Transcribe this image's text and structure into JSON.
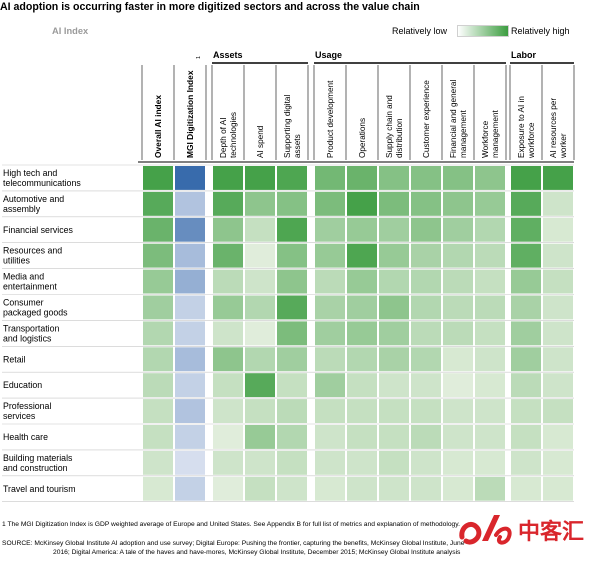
{
  "title": "AI adoption is occurring faster in more digitized sectors and across the value chain",
  "subtitle": "AI Index",
  "legend": {
    "low_label": "Relatively low",
    "high_label": "Relatively high",
    "low_color": "#ffffff",
    "high_color": "#3c9d40"
  },
  "colors": {
    "green_high": "#3c9d40",
    "blue_high": "#2f64a8",
    "grid_line": "#ffffff"
  },
  "chart_data": {
    "type": "heatmap",
    "title": "AI adoption is occurring faster in more digitized sectors and across the value chain",
    "subtitle": "AI Index",
    "scale": "relative, 0 = Relatively low, 1 = Relatively high",
    "groups": [
      {
        "name": "",
        "columns": [
          0,
          1
        ]
      },
      {
        "name": "Assets",
        "columns": [
          2,
          3,
          4
        ]
      },
      {
        "name": "Usage",
        "columns": [
          5,
          6,
          7,
          8,
          9,
          10
        ]
      },
      {
        "name": "Labor",
        "columns": [
          11,
          12
        ]
      }
    ],
    "columns": [
      {
        "lines": [
          "Overall AI index"
        ],
        "bold": true
      },
      {
        "lines": [
          "MGI Digitization Index"
        ],
        "bold": true,
        "sup": "1"
      },
      {
        "lines": [
          "Depth of AI",
          "technologies"
        ]
      },
      {
        "lines": [
          "AI spend"
        ]
      },
      {
        "lines": [
          "Supporting digital",
          "assets"
        ]
      },
      {
        "lines": [
          "Product development"
        ]
      },
      {
        "lines": [
          "Operations"
        ]
      },
      {
        "lines": [
          "Supply chain and",
          "distribution"
        ]
      },
      {
        "lines": [
          "Customer experience"
        ]
      },
      {
        "lines": [
          "Financial and general",
          "management"
        ]
      },
      {
        "lines": [
          "Workforce",
          "management"
        ]
      },
      {
        "lines": [
          "Exposure to AI in",
          "workforce"
        ]
      },
      {
        "lines": [
          "AI resources per",
          "worker"
        ]
      }
    ],
    "rows": [
      {
        "lines": [
          "High tech and",
          "telecommunications"
        ],
        "values": [
          0.95,
          0.95,
          0.95,
          0.95,
          0.9,
          0.7,
          0.75,
          0.6,
          0.6,
          0.6,
          0.55,
          0.95,
          0.95
        ]
      },
      {
        "lines": [
          "Automotive and",
          "assembly"
        ],
        "values": [
          0.85,
          0.3,
          0.85,
          0.55,
          0.6,
          0.65,
          0.95,
          0.65,
          0.6,
          0.55,
          0.5,
          0.85,
          0.2
        ]
      },
      {
        "lines": [
          "Financial services"
        ],
        "values": [
          0.75,
          0.7,
          0.55,
          0.25,
          0.9,
          0.45,
          0.5,
          0.45,
          0.55,
          0.45,
          0.35,
          0.8,
          0.15
        ]
      },
      {
        "lines": [
          "Resources and",
          "utilities"
        ],
        "values": [
          0.65,
          0.35,
          0.75,
          0.1,
          0.6,
          0.5,
          0.9,
          0.5,
          0.4,
          0.35,
          0.3,
          0.8,
          0.2
        ]
      },
      {
        "lines": [
          "Media and",
          "entertainment"
        ],
        "values": [
          0.5,
          0.45,
          0.3,
          0.2,
          0.55,
          0.3,
          0.5,
          0.35,
          0.35,
          0.3,
          0.25,
          0.5,
          0.25
        ]
      },
      {
        "lines": [
          "Consumer",
          "packaged goods"
        ],
        "values": [
          0.45,
          0.2,
          0.5,
          0.35,
          0.85,
          0.4,
          0.45,
          0.55,
          0.35,
          0.3,
          0.3,
          0.4,
          0.2
        ]
      },
      {
        "lines": [
          "Transportation",
          "and logistics"
        ],
        "values": [
          0.35,
          0.2,
          0.2,
          0.1,
          0.65,
          0.45,
          0.5,
          0.45,
          0.3,
          0.3,
          0.25,
          0.45,
          0.2
        ]
      },
      {
        "lines": [
          "Retail"
        ],
        "values": [
          0.35,
          0.35,
          0.55,
          0.35,
          0.45,
          0.3,
          0.35,
          0.4,
          0.35,
          0.15,
          0.2,
          0.45,
          0.2
        ]
      },
      {
        "lines": [
          "Education"
        ],
        "values": [
          0.3,
          0.2,
          0.25,
          0.85,
          0.25,
          0.45,
          0.25,
          0.2,
          0.2,
          0.1,
          0.15,
          0.3,
          0.2
        ]
      },
      {
        "lines": [
          "Professional",
          "services"
        ],
        "values": [
          0.25,
          0.3,
          0.2,
          0.25,
          0.3,
          0.25,
          0.25,
          0.25,
          0.25,
          0.2,
          0.2,
          0.25,
          0.25
        ]
      },
      {
        "lines": [
          "Health care"
        ],
        "values": [
          0.25,
          0.2,
          0.1,
          0.5,
          0.35,
          0.2,
          0.25,
          0.25,
          0.3,
          0.2,
          0.2,
          0.25,
          0.15
        ]
      },
      {
        "lines": [
          "Building materials",
          "and construction"
        ],
        "values": [
          0.2,
          0.1,
          0.2,
          0.2,
          0.25,
          0.2,
          0.2,
          0.25,
          0.2,
          0.15,
          0.15,
          0.2,
          0.15
        ]
      },
      {
        "lines": [
          "Travel and tourism"
        ],
        "values": [
          0.15,
          0.2,
          0.1,
          0.25,
          0.2,
          0.15,
          0.2,
          0.2,
          0.2,
          0.15,
          0.3,
          0.15,
          0.15
        ]
      }
    ]
  },
  "footnote": "1  The MGI Digitization Index is GDP weighted average of Europe and United States. See Appendix B for full list of metrics and explanation of methodology.",
  "source": {
    "line1": "SOURCE:  McKinsey Global Institute AI adoption and use survey; Digital Europe: Pushing the frontier, capturing the benefits, McKinsey Global Institute, June",
    "line2": "2016; Digital America: A tale of the haves and have-mores, McKinsey Global Institute, December 2015; McKinsey Global Institute analysis"
  },
  "watermark": {
    "text": "中客汇",
    "color": "#d9262c"
  }
}
